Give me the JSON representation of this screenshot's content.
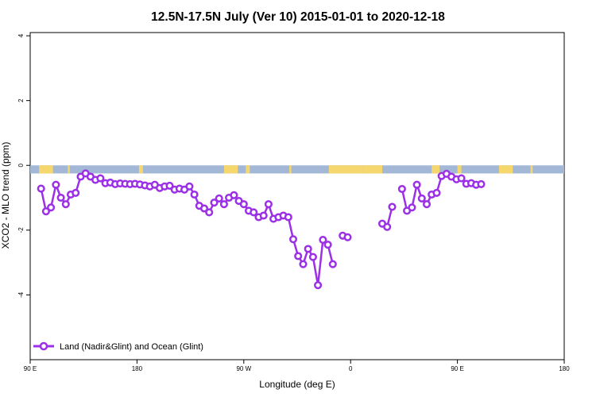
{
  "chart_data": {
    "type": "line",
    "title": "12.5N-17.5N July (Ver 10)   2015-01-01 to 2020-12-18",
    "xlabel": "Longitude (deg E)",
    "ylabel": "XCO2 - MLO trend (ppm)",
    "xlim": [
      -90,
      180
    ],
    "ylim": [
      -6,
      4.1
    ],
    "x_ticks": [
      {
        "value": -90,
        "label": "90 E"
      },
      {
        "value": -36,
        "label": "180"
      },
      {
        "value": 18,
        "label": "90 W"
      },
      {
        "value": 72,
        "label": "0"
      },
      {
        "value": 126,
        "label": "90 E"
      },
      {
        "value": 180,
        "label": "180"
      }
    ],
    "y_ticks": [
      {
        "value": 4,
        "label": "4"
      },
      {
        "value": 2,
        "label": "2"
      },
      {
        "value": 0,
        "label": "0"
      },
      {
        "value": -2,
        "label": "-2"
      },
      {
        "value": -4,
        "label": "-4"
      }
    ],
    "grid": false,
    "legend_position": "bottom-left",
    "colors": {
      "series": "#9b30e6",
      "ocean_band": "#a3b8d6",
      "land": "#f5d76e"
    },
    "band": {
      "y_top": 0.0,
      "y_bottom": -0.25,
      "land_segments": [
        [
          -85.5,
          -78.5
        ],
        [
          -71,
          -70
        ],
        [
          -35,
          -33
        ],
        [
          8,
          15
        ],
        [
          19,
          21
        ],
        [
          41,
          42
        ],
        [
          61,
          78
        ],
        [
          78,
          88
        ],
        [
          113,
          117
        ],
        [
          126,
          128
        ],
        [
          147,
          154
        ],
        [
          163,
          164
        ]
      ]
    },
    "series": [
      {
        "name": "Land (Nadir&Glint) and Ocean (Glint)",
        "points": [
          [
            -84.5,
            -0.72
          ],
          [
            -82,
            -1.42
          ],
          [
            -79.5,
            -1.3
          ],
          [
            -77,
            -0.6
          ],
          [
            -74.5,
            -1.0
          ],
          [
            -72,
            -1.2
          ],
          [
            -69.5,
            -0.9
          ],
          [
            -67,
            -0.85
          ],
          [
            -64.5,
            -0.35
          ],
          [
            -62,
            -0.25
          ],
          [
            -59.5,
            -0.35
          ],
          [
            -57,
            -0.45
          ],
          [
            -54.5,
            -0.4
          ],
          [
            -52,
            -0.55
          ],
          [
            -49.5,
            -0.53
          ],
          [
            -47,
            -0.58
          ],
          [
            -44.5,
            -0.56
          ],
          [
            -42,
            -0.57
          ],
          [
            -39.5,
            -0.58
          ],
          [
            -37,
            -0.57
          ],
          [
            -34.5,
            -0.59
          ],
          [
            -32,
            -0.62
          ],
          [
            -29.5,
            -0.65
          ],
          [
            -27,
            -0.6
          ],
          [
            -24.5,
            -0.7
          ],
          [
            -22,
            -0.65
          ],
          [
            -19.5,
            -0.63
          ],
          [
            -17,
            -0.75
          ],
          [
            -14.5,
            -0.72
          ],
          [
            -12,
            -0.75
          ],
          [
            -9.5,
            -0.65
          ],
          [
            -7,
            -0.9
          ],
          [
            -4.5,
            -1.25
          ],
          [
            -2,
            -1.33
          ],
          [
            0.5,
            -1.45
          ],
          [
            3,
            -1.15
          ],
          [
            5.5,
            -1.02
          ],
          [
            8,
            -1.2
          ],
          [
            10.5,
            -1.0
          ],
          [
            13,
            -0.92
          ],
          [
            15.5,
            -1.1
          ],
          [
            18,
            -1.2
          ],
          [
            20.5,
            -1.4
          ],
          [
            23,
            -1.45
          ],
          [
            25.5,
            -1.6
          ],
          [
            28,
            -1.55
          ],
          [
            30.5,
            -1.2
          ],
          [
            33,
            -1.65
          ],
          [
            35.5,
            -1.6
          ],
          [
            38,
            -1.55
          ],
          [
            40.5,
            -1.6
          ],
          [
            43,
            -2.28
          ],
          [
            45.5,
            -2.8
          ],
          [
            48,
            -3.05
          ],
          [
            50.5,
            -2.58
          ],
          [
            53,
            -2.83
          ],
          [
            55.5,
            -3.7
          ],
          [
            58,
            -2.3
          ],
          [
            60.5,
            -2.45
          ],
          [
            63,
            -3.05
          ],
          null,
          [
            68,
            -2.17
          ],
          [
            70.5,
            -2.22
          ],
          null,
          [
            88,
            -1.8
          ],
          [
            90.5,
            -1.9
          ],
          [
            93,
            -1.28
          ],
          null,
          [
            98,
            -0.73
          ],
          [
            100.5,
            -1.4
          ],
          [
            103,
            -1.3
          ],
          [
            105.5,
            -0.6
          ],
          [
            108,
            -1.02
          ],
          [
            110.5,
            -1.2
          ],
          [
            113,
            -0.9
          ],
          [
            115.5,
            -0.85
          ],
          [
            118,
            -0.33
          ],
          [
            120.5,
            -0.26
          ],
          [
            123,
            -0.35
          ],
          [
            125.5,
            -0.43
          ],
          [
            128,
            -0.4
          ],
          [
            130.5,
            -0.57
          ],
          [
            133,
            -0.55
          ],
          [
            135.5,
            -0.6
          ],
          [
            138,
            -0.58
          ]
        ]
      }
    ]
  }
}
